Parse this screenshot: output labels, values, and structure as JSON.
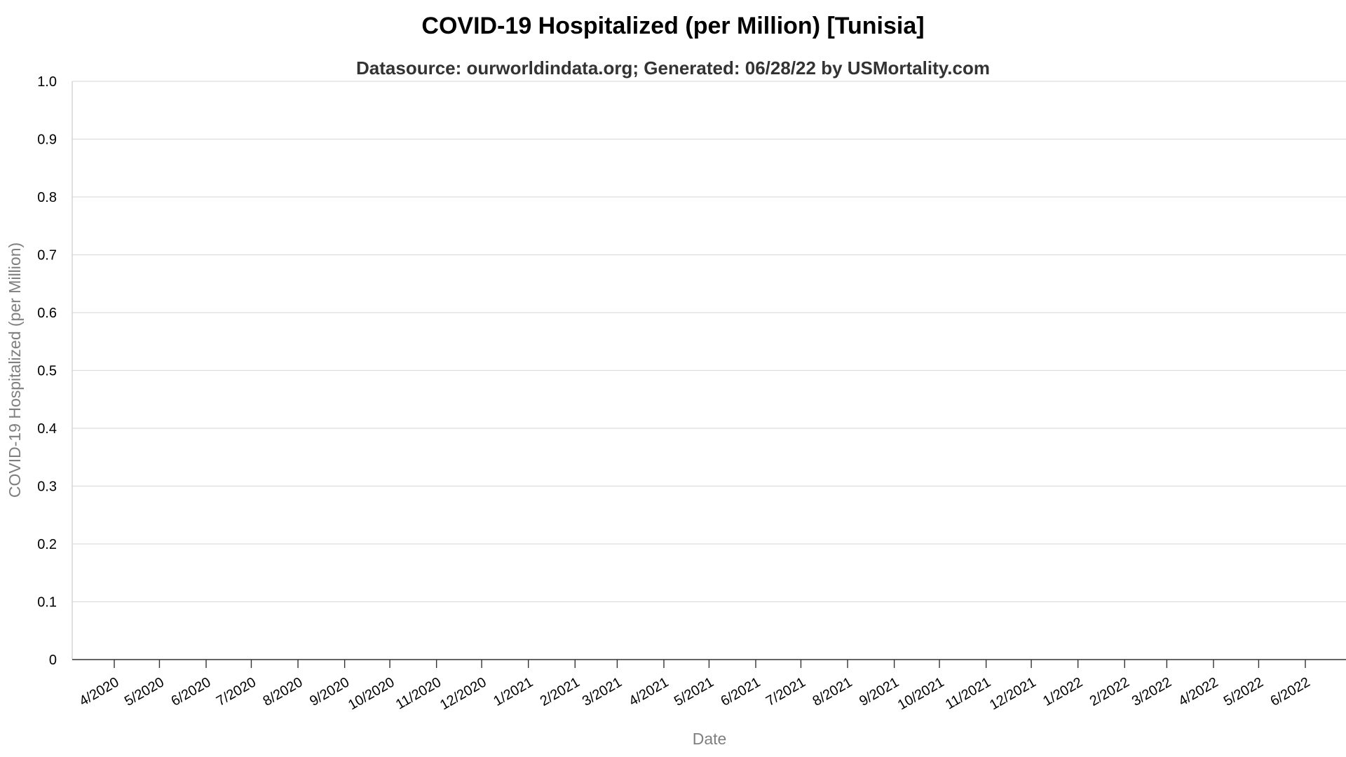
{
  "chart_data": {
    "type": "line",
    "title": "COVID-19 Hospitalized (per Million) [Tunisia]",
    "subtitle": "Datasource: ourworldindata.org; Generated: 06/28/22 by USMortality.com",
    "xlabel": "Date",
    "ylabel": "COVID-19 Hospitalized (per Million)",
    "ylim": [
      0,
      1
    ],
    "grid": true,
    "legend": "none",
    "y_ticks": [
      "0",
      "0.1",
      "0.2",
      "0.3",
      "0.4",
      "0.5",
      "0.6",
      "0.7",
      "0.8",
      "0.9",
      "1.0"
    ],
    "x_ticks": [
      "4/2020",
      "5/2020",
      "6/2020",
      "7/2020",
      "8/2020",
      "9/2020",
      "10/2020",
      "11/2020",
      "12/2020",
      "1/2021",
      "2/2021",
      "3/2021",
      "4/2021",
      "5/2021",
      "6/2021",
      "7/2021",
      "8/2021",
      "9/2021",
      "10/2021",
      "11/2021",
      "12/2021",
      "1/2022",
      "2/2022",
      "3/2022",
      "4/2022",
      "5/2022",
      "6/2022"
    ],
    "series": []
  },
  "colors": {
    "gridline": "#dddddd",
    "baseline": "#333333",
    "axis_title": "#7f7f7f",
    "text": "#000000"
  }
}
